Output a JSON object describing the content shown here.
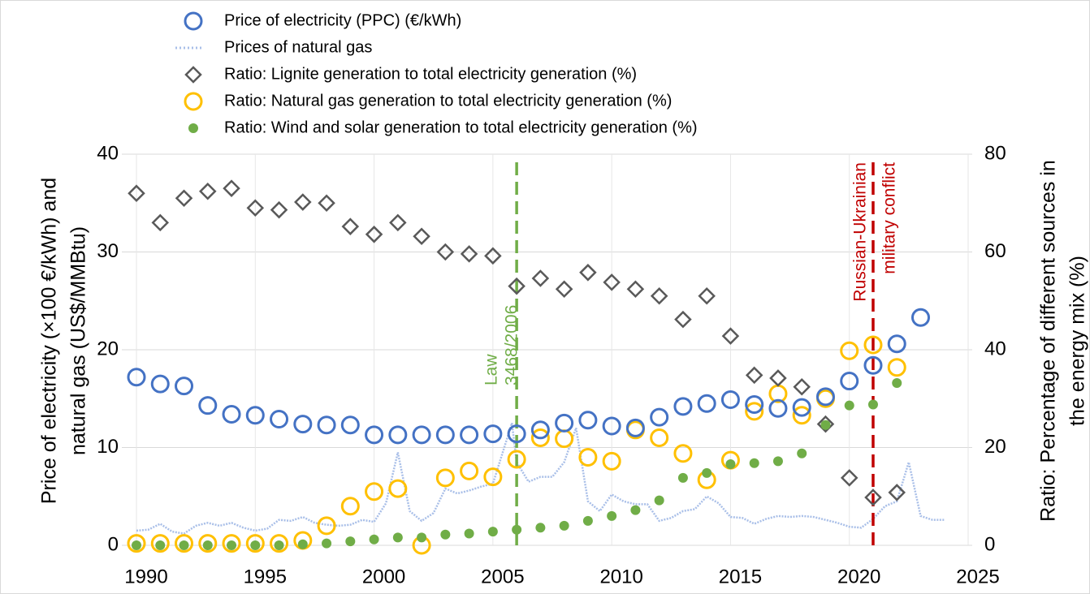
{
  "chart_data": {
    "type": "scatter",
    "ylabel": [
      "Price of electricity (×100 €/kWh) and",
      "natural gas (US$/MMBtu)"
    ],
    "y2label": [
      "Ratio: Percentage of different sources in",
      "the energy mix (%)"
    ],
    "xlim": [
      1990,
      2025
    ],
    "xticks": [
      1990,
      1995,
      2000,
      2005,
      2010,
      2015,
      2020,
      2025
    ],
    "ylim": [
      0,
      40
    ],
    "yticks": [
      0,
      10,
      20,
      30,
      40
    ],
    "y2lim": [
      0,
      80
    ],
    "y2ticks": [
      0,
      20,
      40,
      60,
      80
    ],
    "grid": true,
    "series": [
      {
        "name": "Price of electricity (PPC) (€/kWh)",
        "color": "#4472c4",
        "marker": "circle-open",
        "axis": "y",
        "x": [
          1990,
          1991,
          1992,
          1993,
          1994,
          1995,
          1996,
          1997,
          1998,
          1999,
          2000,
          2001,
          2002,
          2003,
          2004,
          2005,
          2006,
          2007,
          2008,
          2009,
          2010,
          2011,
          2012,
          2013,
          2014,
          2015,
          2016,
          2017,
          2018,
          2019,
          2020,
          2021,
          2022,
          2023
        ],
        "values": [
          17.2,
          16.5,
          16.3,
          14.3,
          13.4,
          13.3,
          12.9,
          12.4,
          12.3,
          12.3,
          11.3,
          11.3,
          11.3,
          11.3,
          11.3,
          11.4,
          11.4,
          11.8,
          12.5,
          12.8,
          12.2,
          12.0,
          13.1,
          14.2,
          14.5,
          14.9,
          14.4,
          14.0,
          14.1,
          15.2,
          16.8,
          18.4,
          20.6,
          23.3
        ]
      },
      {
        "name": "Prices of natural gas",
        "color": "#a9bfe8",
        "marker": "dotted-line",
        "axis": "y",
        "x": [
          1990,
          1990.5,
          1991,
          1991.5,
          1992,
          1992.5,
          1993,
          1993.5,
          1994,
          1994.5,
          1995,
          1995.5,
          1996,
          1996.5,
          1997,
          1997.5,
          1998,
          1998.5,
          1999,
          1999.5,
          2000,
          2000.5,
          2001,
          2001.5,
          2002,
          2002.5,
          2003,
          2003.5,
          2004,
          2004.5,
          2005,
          2005.8,
          2006,
          2006.5,
          2007,
          2007.5,
          2008,
          2008.5,
          2009,
          2009.5,
          2010,
          2010.5,
          2011,
          2011.5,
          2012,
          2012.5,
          2013,
          2013.5,
          2014,
          2014.5,
          2015,
          2015.5,
          2016,
          2016.5,
          2017,
          2017.5,
          2018,
          2018.5,
          2019,
          2019.5,
          2020,
          2020.5,
          2021,
          2021.5,
          2022,
          2022.5,
          2023,
          2023.5,
          2024
        ],
        "values": [
          1.5,
          1.6,
          2.2,
          1.4,
          1.2,
          2.0,
          2.3,
          2.0,
          2.3,
          1.8,
          1.5,
          1.7,
          2.6,
          2.5,
          2.9,
          2.3,
          2.1,
          2.0,
          2.1,
          2.6,
          2.4,
          4.3,
          9.5,
          3.5,
          2.5,
          3.3,
          5.8,
          5.3,
          5.6,
          6.0,
          6.3,
          12.5,
          8.5,
          6.5,
          7.0,
          7.0,
          8.5,
          12.0,
          4.5,
          3.5,
          5.2,
          4.5,
          4.2,
          4.2,
          2.5,
          2.8,
          3.5,
          3.7,
          5.0,
          4.3,
          2.9,
          2.8,
          2.2,
          2.7,
          3.0,
          2.9,
          3.0,
          2.9,
          2.6,
          2.3,
          1.9,
          1.8,
          2.7,
          4.0,
          4.5,
          8.5,
          3.0,
          2.6,
          2.6
        ]
      },
      {
        "name": "Ratio: Lignite generation to total electricity generation (%)",
        "color": "#595959",
        "marker": "diamond-open",
        "axis": "y2",
        "x": [
          1990,
          1991,
          1992,
          1993,
          1994,
          1995,
          1996,
          1997,
          1998,
          1999,
          2000,
          2001,
          2002,
          2003,
          2004,
          2005,
          2006,
          2007,
          2008,
          2009,
          2010,
          2011,
          2012,
          2013,
          2014,
          2015,
          2016,
          2017,
          2018,
          2019,
          2020,
          2021,
          2022
        ],
        "values": [
          72,
          66,
          71,
          72.4,
          73,
          69,
          68.6,
          70.2,
          70,
          65.2,
          63.6,
          66,
          63.2,
          60,
          59.6,
          59.2,
          53,
          54.6,
          52.4,
          55.8,
          53.8,
          52.4,
          51,
          46.2,
          51,
          42.8,
          34.8,
          34.2,
          32.4,
          24.8,
          13.8,
          9.8,
          10.8
        ]
      },
      {
        "name": "Ratio: Natural gas generation to total electricity generation (%)",
        "color": "#ffc000",
        "marker": "circle-open",
        "axis": "y2",
        "x": [
          1990,
          1991,
          1992,
          1993,
          1994,
          1995,
          1996,
          1997,
          1998,
          1999,
          2000,
          2001,
          2002,
          2003,
          2004,
          2005,
          2006,
          2007,
          2008,
          2009,
          2010,
          2011,
          2012,
          2013,
          2014,
          2015,
          2016,
          2017,
          2018,
          2019,
          2020,
          2021,
          2022
        ],
        "values": [
          0.4,
          0.4,
          0.4,
          0.4,
          0.4,
          0.4,
          0.4,
          1.0,
          4.0,
          8.0,
          11,
          11.6,
          0,
          13.8,
          15.2,
          14,
          17.6,
          22,
          21.8,
          18,
          17.2,
          23.6,
          22,
          18.8,
          13.4,
          17.4,
          27.4,
          31,
          26.6,
          30,
          39.8,
          41,
          36.4
        ]
      },
      {
        "name": "Ratio: Wind and solar generation to total electricity generation (%)",
        "color": "#70ad47",
        "marker": "circle-filled",
        "axis": "y2",
        "x": [
          1990,
          1991,
          1992,
          1993,
          1994,
          1995,
          1996,
          1997,
          1998,
          1999,
          2000,
          2001,
          2002,
          2003,
          2004,
          2005,
          2006,
          2007,
          2008,
          2009,
          2010,
          2011,
          2012,
          2013,
          2014,
          2015,
          2016,
          2017,
          2018,
          2019,
          2020,
          2021,
          2022
        ],
        "values": [
          0,
          0,
          0,
          0,
          0,
          0,
          0,
          0.2,
          0.4,
          0.8,
          1.2,
          1.6,
          1.6,
          2.2,
          2.4,
          2.8,
          3.2,
          3.6,
          4,
          5,
          6,
          7.2,
          9.2,
          13.8,
          14.8,
          16.6,
          16.8,
          17.2,
          18.8,
          24.6,
          28.6,
          28.8,
          33.2
        ]
      }
    ],
    "annotations": [
      {
        "x": 2006,
        "lines": [
          "Law",
          "3468/2006"
        ],
        "color": "#70ad47"
      },
      {
        "x": 2021,
        "lines": [
          "Russian-Ukrainian",
          "military conflict"
        ],
        "color": "#c00000"
      }
    ]
  }
}
